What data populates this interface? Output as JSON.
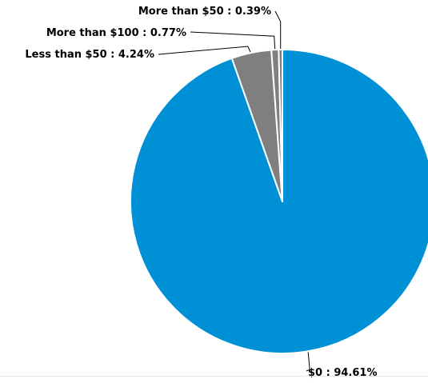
{
  "chart_data": {
    "type": "pie",
    "title": "",
    "slices": [
      {
        "label": "$0",
        "value": 94.61,
        "display": "$0 : 94.61%",
        "color": "#0090d5"
      },
      {
        "label": "Less than $50",
        "value": 4.24,
        "display": "Less than $50 : 4.24%",
        "color": "#7f7f7f"
      },
      {
        "label": "More than $100",
        "value": 0.77,
        "display": "More than $100 : 0.77%",
        "color": "#7f7f7f"
      },
      {
        "label": "More than $50",
        "value": 0.39,
        "display": "More than $50 : 0.39%",
        "color": "#7f7f7f"
      }
    ],
    "start_angle": "12 o'clock",
    "direction": "clockwise",
    "legend": "none",
    "data_labels": "outside with leader lines"
  }
}
